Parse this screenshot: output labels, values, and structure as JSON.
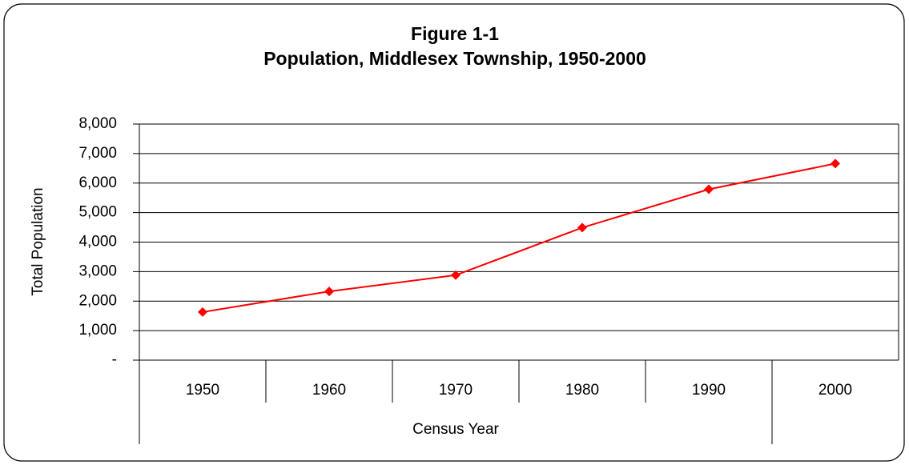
{
  "chart_data": {
    "type": "line",
    "title": "Figure 1-1",
    "subtitle": "Population, Middlesex Township, 1950-2000",
    "x_label": "Census Year",
    "y_label": "Total Population",
    "categories": [
      "1950",
      "1960",
      "1970",
      "1980",
      "1990",
      "2000"
    ],
    "series": [
      {
        "name": "Total Population",
        "color": "#ff0000",
        "values": [
          1630,
          2330,
          2880,
          4490,
          5790,
          6660
        ]
      }
    ],
    "ylim": [
      0,
      8000
    ],
    "yticks": [
      {
        "value": 0,
        "label": "-"
      },
      {
        "value": 1000,
        "label": "1,000"
      },
      {
        "value": 2000,
        "label": "2,000"
      },
      {
        "value": 3000,
        "label": "3,000"
      },
      {
        "value": 4000,
        "label": "4,000"
      },
      {
        "value": 5000,
        "label": "5,000"
      },
      {
        "value": 6000,
        "label": "6,000"
      },
      {
        "value": 7000,
        "label": "7,000"
      },
      {
        "value": 8000,
        "label": "8,000"
      }
    ],
    "grid": true
  }
}
